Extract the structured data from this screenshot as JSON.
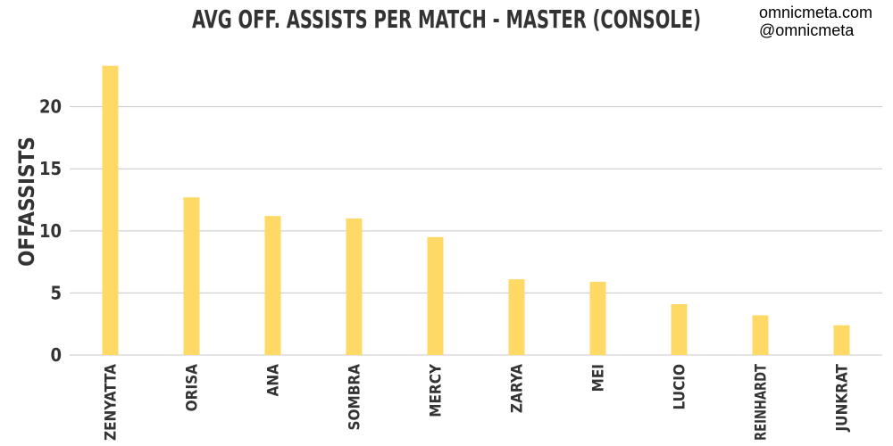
{
  "chart_data": {
    "type": "bar",
    "title": "AVG OFF. ASSISTS PER MATCH - MASTER (CONSOLE)",
    "credits": [
      "omnicmeta.com",
      "@omnicmeta"
    ],
    "xlabel": "",
    "ylabel": "OFFASSISTS",
    "categories": [
      "ZENYATTA",
      "ORISA",
      "ANA",
      "SOMBRA",
      "MERCY",
      "ZARYA",
      "MEI",
      "LUCIO",
      "REINHARDT",
      "JUNKRAT"
    ],
    "values": [
      23.3,
      12.7,
      11.2,
      11.0,
      9.5,
      6.1,
      5.9,
      4.1,
      3.2,
      2.4
    ],
    "yticks": [
      0,
      5,
      10,
      15,
      20
    ],
    "ylim": [
      0,
      24.5
    ],
    "grid": true,
    "legend": "none",
    "bar_color": "#FFD966",
    "grid_color": "#C8C8C8"
  }
}
